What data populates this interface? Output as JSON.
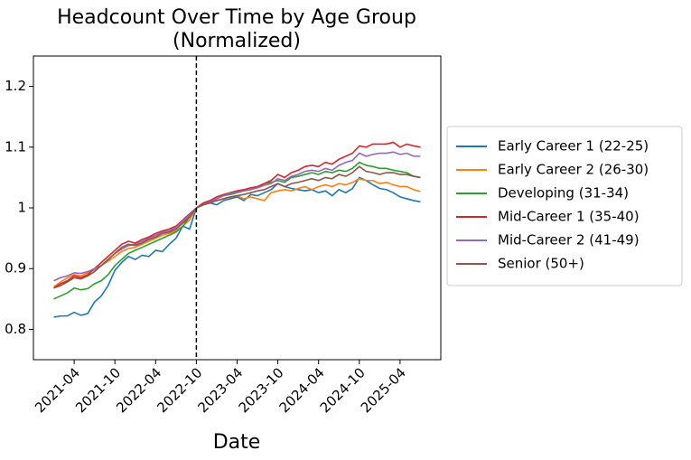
{
  "chart_data": {
    "type": "line",
    "title": "Headcount Over Time by Age Group",
    "subtitle": "(Normalized)",
    "x_label": "Date",
    "x": [
      "2021-01",
      "2021-02",
      "2021-03",
      "2021-04",
      "2021-05",
      "2021-06",
      "2021-07",
      "2021-08",
      "2021-09",
      "2021-10",
      "2021-11",
      "2021-12",
      "2022-01",
      "2022-02",
      "2022-03",
      "2022-04",
      "2022-05",
      "2022-06",
      "2022-07",
      "2022-08",
      "2022-09",
      "2022-10",
      "2022-11",
      "2022-12",
      "2023-01",
      "2023-02",
      "2023-03",
      "2023-04",
      "2023-05",
      "2023-06",
      "2023-07",
      "2023-08",
      "2023-09",
      "2023-10",
      "2023-11",
      "2023-12",
      "2024-01",
      "2024-02",
      "2024-03",
      "2024-04",
      "2024-05",
      "2024-06",
      "2024-07",
      "2024-08",
      "2024-09",
      "2024-10",
      "2024-11",
      "2024-12",
      "2025-01",
      "2025-02",
      "2025-03",
      "2025-04",
      "2025-05",
      "2025-06",
      "2025-07"
    ],
    "series": [
      {
        "name": "Early Career 1 (22-25)",
        "color": "#1f77b4",
        "values": [
          0.82,
          0.822,
          0.822,
          0.828,
          0.823,
          0.826,
          0.845,
          0.855,
          0.872,
          0.897,
          0.91,
          0.92,
          0.915,
          0.922,
          0.92,
          0.93,
          0.928,
          0.94,
          0.95,
          0.97,
          0.965,
          1.0,
          1.005,
          1.008,
          1.005,
          1.012,
          1.015,
          1.018,
          1.012,
          1.022,
          1.02,
          1.025,
          1.03,
          1.04,
          1.035,
          1.032,
          1.03,
          1.028,
          1.03,
          1.025,
          1.028,
          1.02,
          1.03,
          1.025,
          1.032,
          1.05,
          1.045,
          1.038,
          1.032,
          1.03,
          1.025,
          1.018,
          1.015,
          1.012,
          1.01
        ]
      },
      {
        "name": "Early Career 2 (26-30)",
        "color": "#ff7f0e",
        "values": [
          0.87,
          0.878,
          0.885,
          0.89,
          0.888,
          0.893,
          0.898,
          0.905,
          0.912,
          0.92,
          0.928,
          0.933,
          0.935,
          0.94,
          0.945,
          0.95,
          0.955,
          0.958,
          0.962,
          0.97,
          0.98,
          1.0,
          1.005,
          1.01,
          1.012,
          1.015,
          1.018,
          1.02,
          1.015,
          1.018,
          1.015,
          1.012,
          1.025,
          1.028,
          1.03,
          1.028,
          1.032,
          1.035,
          1.03,
          1.035,
          1.038,
          1.035,
          1.04,
          1.038,
          1.042,
          1.048,
          1.045,
          1.045,
          1.04,
          1.042,
          1.038,
          1.035,
          1.035,
          1.03,
          1.027
        ]
      },
      {
        "name": "Developing (31-34)",
        "color": "#2ca02c",
        "values": [
          0.85,
          0.855,
          0.86,
          0.868,
          0.865,
          0.867,
          0.875,
          0.88,
          0.89,
          0.905,
          0.915,
          0.925,
          0.93,
          0.935,
          0.94,
          0.945,
          0.95,
          0.955,
          0.96,
          0.97,
          0.985,
          1.0,
          1.005,
          1.01,
          1.015,
          1.02,
          1.022,
          1.025,
          1.028,
          1.03,
          1.035,
          1.04,
          1.042,
          1.045,
          1.042,
          1.05,
          1.052,
          1.055,
          1.058,
          1.055,
          1.06,
          1.058,
          1.062,
          1.06,
          1.065,
          1.075,
          1.07,
          1.068,
          1.065,
          1.065,
          1.062,
          1.06,
          1.058,
          1.052,
          1.05
        ]
      },
      {
        "name": "Mid-Career 1 (35-40)",
        "color": "#d62728",
        "values": [
          0.868,
          0.875,
          0.88,
          0.888,
          0.885,
          0.89,
          0.9,
          0.91,
          0.92,
          0.93,
          0.94,
          0.945,
          0.942,
          0.948,
          0.952,
          0.958,
          0.962,
          0.965,
          0.97,
          0.98,
          0.99,
          1.0,
          1.008,
          1.012,
          1.018,
          1.022,
          1.025,
          1.028,
          1.03,
          1.033,
          1.035,
          1.04,
          1.045,
          1.055,
          1.05,
          1.058,
          1.062,
          1.068,
          1.07,
          1.068,
          1.075,
          1.072,
          1.08,
          1.085,
          1.09,
          1.102,
          1.1,
          1.105,
          1.105,
          1.105,
          1.108,
          1.1,
          1.105,
          1.102,
          1.1
        ]
      },
      {
        "name": "Mid-Career 2 (41-49)",
        "color": "#9467bd",
        "values": [
          0.88,
          0.885,
          0.888,
          0.893,
          0.892,
          0.895,
          0.9,
          0.905,
          0.915,
          0.925,
          0.932,
          0.938,
          0.94,
          0.945,
          0.95,
          0.955,
          0.96,
          0.962,
          0.968,
          0.978,
          0.988,
          1.0,
          1.005,
          1.01,
          1.015,
          1.02,
          1.024,
          1.026,
          1.028,
          1.03,
          1.033,
          1.037,
          1.04,
          1.048,
          1.045,
          1.052,
          1.055,
          1.06,
          1.062,
          1.06,
          1.065,
          1.062,
          1.07,
          1.075,
          1.078,
          1.09,
          1.085,
          1.088,
          1.09,
          1.09,
          1.092,
          1.088,
          1.09,
          1.085,
          1.085
        ]
      },
      {
        "name": "Senior (50+)",
        "color": "#8c564b",
        "values": [
          0.868,
          0.872,
          0.878,
          0.885,
          0.883,
          0.888,
          0.895,
          0.905,
          0.915,
          0.925,
          0.935,
          0.94,
          0.938,
          0.942,
          0.948,
          0.952,
          0.958,
          0.96,
          0.965,
          0.975,
          0.985,
          1.0,
          1.005,
          1.008,
          1.012,
          1.015,
          1.018,
          1.02,
          1.022,
          1.025,
          1.028,
          1.03,
          1.035,
          1.04,
          1.035,
          1.04,
          1.042,
          1.045,
          1.048,
          1.045,
          1.05,
          1.048,
          1.055,
          1.052,
          1.058,
          1.068,
          1.06,
          1.058,
          1.055,
          1.058,
          1.058,
          1.055,
          1.055,
          1.052,
          1.05
        ]
      }
    ],
    "vline_x": "2022-10",
    "xlim": [
      "2020-10",
      "2025-10"
    ],
    "xticks": [
      "2021-04",
      "2021-10",
      "2022-04",
      "2022-10",
      "2023-04",
      "2023-10",
      "2024-04",
      "2024-10",
      "2025-04"
    ],
    "ylim": [
      0.75,
      1.25
    ],
    "yticks": [
      0.8,
      0.9,
      1.0,
      1.1,
      1.2
    ],
    "legend": "outside-right"
  }
}
